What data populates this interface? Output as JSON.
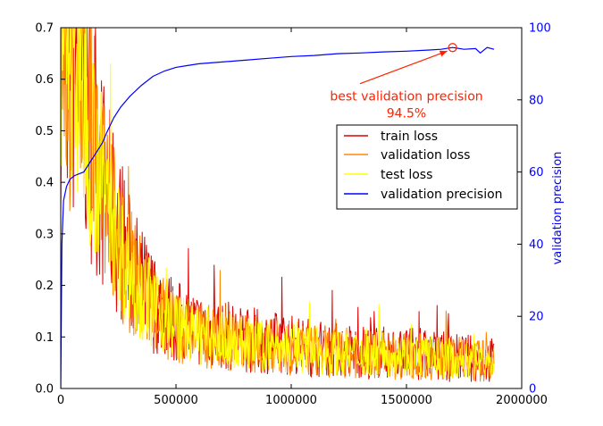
{
  "chart_data": {
    "type": "line",
    "title": "",
    "xlabel": "",
    "ylabel": "",
    "y2label": "validation precision",
    "xlim": [
      0,
      2000000
    ],
    "ylim": [
      0,
      0.7
    ],
    "y2lim": [
      0,
      100
    ],
    "xticks": [
      0,
      500000,
      1000000,
      1500000,
      2000000
    ],
    "xtick_labels": [
      "0",
      "500000",
      "1000000",
      "1500000",
      "2000000"
    ],
    "yticks": [
      0.0,
      0.1,
      0.2,
      0.3,
      0.4,
      0.5,
      0.6,
      0.7
    ],
    "ytick_labels": [
      "0.0",
      "0.1",
      "0.2",
      "0.3",
      "0.4",
      "0.5",
      "0.6",
      "0.7"
    ],
    "y2ticks": [
      0,
      20,
      40,
      60,
      80,
      100
    ],
    "y2tick_labels": [
      "0",
      "20",
      "40",
      "60",
      "80",
      "100"
    ],
    "grid": false,
    "legend_position": "center-right",
    "colors": {
      "train": "#dd0000",
      "validation": "#ff8800",
      "test": "#ffff00",
      "precision": "#0000ff",
      "annotation": "#ff2200",
      "y2axis": "#0000ff"
    },
    "series": [
      {
        "name": "train loss",
        "axis": "left",
        "noisy": true,
        "x": [
          0,
          50000,
          100000,
          150000,
          200000,
          250000,
          300000,
          350000,
          400000,
          450000,
          500000,
          600000,
          700000,
          800000,
          900000,
          1000000,
          1100000,
          1200000,
          1300000,
          1400000,
          1500000,
          1600000,
          1700000,
          1800000,
          1880000
        ],
        "values": [
          0.69,
          0.66,
          0.58,
          0.46,
          0.37,
          0.3,
          0.24,
          0.2,
          0.17,
          0.15,
          0.13,
          0.115,
          0.105,
          0.095,
          0.09,
          0.085,
          0.08,
          0.075,
          0.072,
          0.07,
          0.068,
          0.065,
          0.06,
          0.058,
          0.055
        ],
        "peaks": [
          {
            "x": 665000,
            "y": 0.24
          },
          {
            "x": 1360000,
            "y": 0.15
          },
          {
            "x": 1555000,
            "y": 0.15
          }
        ]
      },
      {
        "name": "validation loss",
        "axis": "left",
        "noisy": true,
        "x": [
          0,
          50000,
          100000,
          150000,
          200000,
          250000,
          300000,
          350000,
          400000,
          450000,
          500000,
          600000,
          700000,
          800000,
          900000,
          1000000,
          1100000,
          1200000,
          1300000,
          1400000,
          1500000,
          1600000,
          1700000,
          1800000,
          1880000
        ],
        "values": [
          0.69,
          0.655,
          0.57,
          0.45,
          0.36,
          0.29,
          0.23,
          0.19,
          0.16,
          0.14,
          0.12,
          0.105,
          0.095,
          0.088,
          0.082,
          0.078,
          0.074,
          0.07,
          0.068,
          0.066,
          0.064,
          0.062,
          0.058,
          0.055,
          0.052
        ],
        "peaks": []
      },
      {
        "name": "test loss",
        "axis": "left",
        "noisy": true,
        "x": [
          0,
          50000,
          100000,
          150000,
          200000,
          250000,
          300000,
          350000,
          400000,
          450000,
          500000,
          600000,
          700000,
          800000,
          900000,
          1000000,
          1100000,
          1200000,
          1300000,
          1400000,
          1500000,
          1600000,
          1700000,
          1800000,
          1880000
        ],
        "values": [
          0.69,
          0.655,
          0.57,
          0.45,
          0.36,
          0.29,
          0.23,
          0.19,
          0.16,
          0.14,
          0.12,
          0.105,
          0.095,
          0.088,
          0.082,
          0.078,
          0.074,
          0.07,
          0.068,
          0.066,
          0.064,
          0.062,
          0.058,
          0.055,
          0.052
        ],
        "peaks": []
      },
      {
        "name": "validation precision",
        "axis": "right",
        "noisy": false,
        "x": [
          0,
          5000,
          12000,
          25000,
          40000,
          60000,
          80000,
          100000,
          120000,
          150000,
          180000,
          200000,
          230000,
          260000,
          300000,
          350000,
          400000,
          450000,
          500000,
          550000,
          600000,
          700000,
          800000,
          900000,
          1000000,
          1100000,
          1200000,
          1300000,
          1400000,
          1500000,
          1600000,
          1650000,
          1700000,
          1750000,
          1800000,
          1820000,
          1850000,
          1880000
        ],
        "values": [
          0,
          40,
          52,
          56,
          58,
          59,
          59.5,
          60,
          62,
          65,
          68,
          71,
          75,
          78,
          81,
          84,
          86.5,
          88,
          89,
          89.5,
          90,
          90.5,
          91,
          91.5,
          92,
          92.3,
          92.8,
          93,
          93.3,
          93.5,
          93.8,
          94,
          94.5,
          94,
          94.2,
          93,
          94.5,
          94
        ]
      }
    ],
    "annotation": {
      "text_line1": "best validation precision",
      "text_line2": "94.5%",
      "point": {
        "x": 1700000,
        "y": 94.5
      },
      "text_anchor_point": {
        "x": 1500000,
        "y": 84
      }
    }
  }
}
